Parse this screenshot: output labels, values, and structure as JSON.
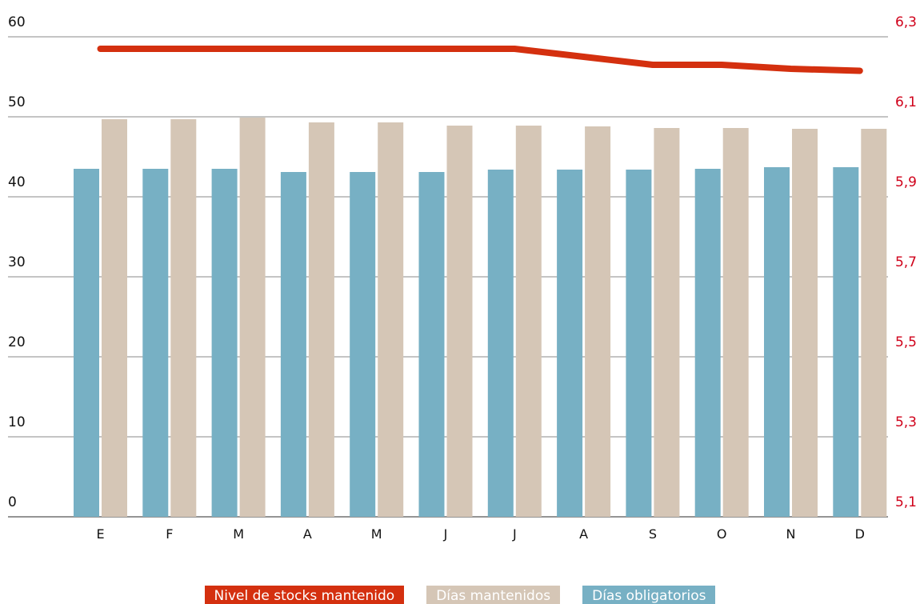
{
  "chart_data": {
    "type": "bar",
    "categories": [
      "E",
      "F",
      "M",
      "A",
      "M",
      "J",
      "J",
      "A",
      "S",
      "O",
      "N",
      "D"
    ],
    "ylim_left": [
      0,
      60
    ],
    "yticks_left": [
      "0",
      "10",
      "20",
      "30",
      "40",
      "50",
      "60"
    ],
    "ylim_right": [
      5.1,
      6.3
    ],
    "yticks_right": [
      "5,1",
      "5,3",
      "5,5",
      "5,7",
      "5,9",
      "6,1",
      "6,3"
    ],
    "grid": true,
    "legend_position": "bottom",
    "series": [
      {
        "name": "Días obligatorios",
        "kind": "bar",
        "axis": "left",
        "color": "#77b0c4",
        "values": [
          43.5,
          43.5,
          43.5,
          43.1,
          43.1,
          43.1,
          43.4,
          43.4,
          43.4,
          43.5,
          43.7,
          43.7
        ]
      },
      {
        "name": "Días mantenidos",
        "kind": "bar",
        "axis": "left",
        "color": "#d5c6b6",
        "values": [
          49.7,
          49.7,
          49.9,
          49.3,
          49.3,
          48.9,
          48.9,
          48.8,
          48.6,
          48.6,
          48.5,
          48.5
        ]
      },
      {
        "name": "Nivel de stocks mantenido",
        "kind": "line",
        "axis": "right",
        "color": "#d4300f",
        "values": [
          6.27,
          6.27,
          6.27,
          6.27,
          6.27,
          6.27,
          6.27,
          6.25,
          6.23,
          6.23,
          6.22,
          6.215
        ]
      }
    ],
    "legend": [
      {
        "label": "Nivel de stocks mantenido",
        "color": "#d4300f"
      },
      {
        "label": "Días mantenidos",
        "color": "#d5c6b6"
      },
      {
        "label": "Días obligatorios",
        "color": "#77b0c4"
      }
    ]
  }
}
